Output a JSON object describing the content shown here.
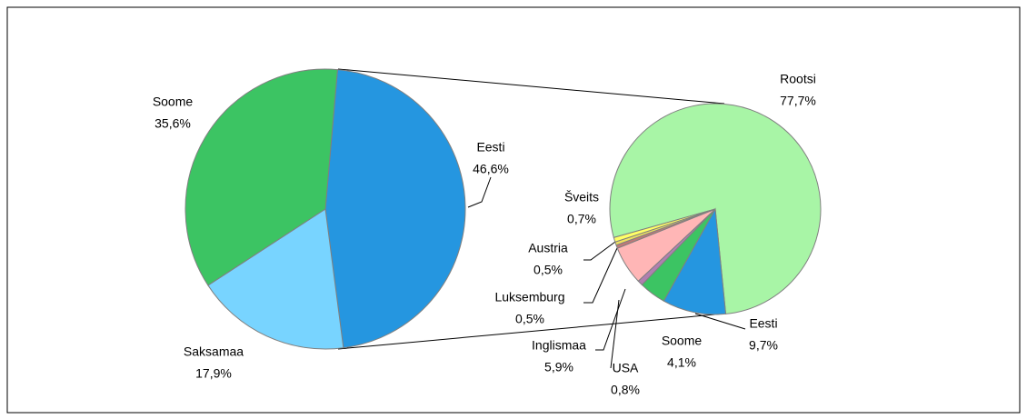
{
  "chart_data": [
    {
      "type": "pie",
      "categories": [
        "Eesti",
        "Saksamaa",
        "Soome"
      ],
      "values": [
        46.6,
        17.9,
        35.6
      ],
      "value_labels": [
        "46,6%",
        "17,9%",
        "35,6%"
      ],
      "colors": [
        "#2596e0",
        "#78d4ff",
        "#3cc463"
      ]
    },
    {
      "type": "pie",
      "categories": [
        "Rootsi",
        "Eesti",
        "Soome",
        "USA",
        "Inglismaa",
        "Luksemburg",
        "Austria",
        "Šveits"
      ],
      "values": [
        77.7,
        9.7,
        4.1,
        0.8,
        5.9,
        0.5,
        0.5,
        0.7
      ],
      "value_labels": [
        "77,7%",
        "9,7%",
        "4,1%",
        "0,8%",
        "5,9%",
        "0,5%",
        "0,5%",
        "0,7%"
      ],
      "colors": [
        "#a8f5a6",
        "#2596e0",
        "#3cc463",
        "#b07fb0",
        "#ffb6b6",
        "#c07878",
        "#f0e060",
        "#ffff66"
      ]
    }
  ]
}
